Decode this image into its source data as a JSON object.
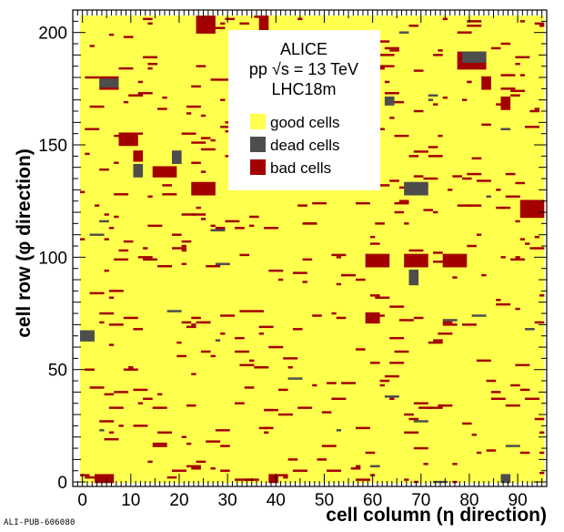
{
  "chart_data": {
    "type": "heatmap",
    "title": "",
    "xlabel": "cell column (η direction)",
    "ylabel": "cell row (φ direction)",
    "xlim": [
      -2,
      96
    ],
    "ylim": [
      -2,
      210
    ],
    "x_ticks": [
      0,
      10,
      20,
      30,
      40,
      50,
      60,
      70,
      80,
      90
    ],
    "y_ticks": [
      0,
      50,
      100,
      150,
      200
    ],
    "grid": false,
    "info_lines": [
      "ALICE",
      "pp √s = 13 TeV",
      "LHC18m"
    ],
    "legend_position": "top-center",
    "categories": [
      {
        "name": "good cells",
        "color": "#ffff4d"
      },
      {
        "name": "dead cells",
        "color": "#4d4d4d"
      },
      {
        "name": "bad cells",
        "color": "#a30000"
      }
    ],
    "cells_grid": {
      "columns": [
        0,
        95
      ],
      "rows": [
        0,
        207
      ],
      "default_status": "good cells"
    },
    "blocks": [
      {
        "status": "bad cells",
        "col": [
          3,
          6
        ],
        "row": [
          0,
          3
        ]
      },
      {
        "status": "dead cells",
        "col": [
          87,
          88
        ],
        "row": [
          0,
          3
        ]
      },
      {
        "status": "dead cells",
        "col": [
          0,
          2
        ],
        "row": [
          63,
          67
        ]
      },
      {
        "status": "bad cells",
        "col": [
          4,
          7
        ],
        "row": [
          175,
          180
        ]
      },
      {
        "status": "dead cells",
        "col": [
          4,
          7
        ],
        "row": [
          176,
          179
        ]
      },
      {
        "status": "bad cells",
        "col": [
          8,
          11
        ],
        "row": [
          150,
          155
        ]
      },
      {
        "status": "bad cells",
        "col": [
          15,
          19
        ],
        "row": [
          136,
          140
        ]
      },
      {
        "status": "bad cells",
        "col": [
          23,
          27
        ],
        "row": [
          128,
          133
        ]
      },
      {
        "status": "dead cells",
        "col": [
          19,
          20
        ],
        "row": [
          142,
          147
        ]
      },
      {
        "status": "bad cells",
        "col": [
          24,
          27
        ],
        "row": [
          200,
          207
        ]
      },
      {
        "status": "bad cells",
        "col": [
          37,
          38
        ],
        "row": [
          200,
          207
        ]
      },
      {
        "status": "bad cells",
        "col": [
          11,
          12
        ],
        "row": [
          143,
          147
        ]
      },
      {
        "status": "dead cells",
        "col": [
          11,
          12
        ],
        "row": [
          136,
          141
        ]
      },
      {
        "status": "dead cells",
        "col": [
          67,
          71
        ],
        "row": [
          128,
          133
        ]
      },
      {
        "status": "dead cells",
        "col": [
          63,
          64
        ],
        "row": [
          168,
          171
        ]
      },
      {
        "status": "bad cells",
        "col": [
          78,
          83
        ],
        "row": [
          184,
          191
        ]
      },
      {
        "status": "dead cells",
        "col": [
          79,
          83
        ],
        "row": [
          187,
          191
        ]
      },
      {
        "status": "bad cells",
        "col": [
          83,
          84
        ],
        "row": [
          175,
          180
        ]
      },
      {
        "status": "bad cells",
        "col": [
          87,
          88
        ],
        "row": [
          166,
          171
        ]
      },
      {
        "status": "bad cells",
        "col": [
          91,
          95
        ],
        "row": [
          118,
          125
        ]
      },
      {
        "status": "bad cells",
        "col": [
          59,
          63
        ],
        "row": [
          96,
          101
        ]
      },
      {
        "status": "bad cells",
        "col": [
          67,
          71
        ],
        "row": [
          96,
          101
        ]
      },
      {
        "status": "bad cells",
        "col": [
          75,
          79
        ],
        "row": [
          96,
          101
        ]
      },
      {
        "status": "dead cells",
        "col": [
          68,
          69
        ],
        "row": [
          88,
          94
        ]
      },
      {
        "status": "bad cells",
        "col": [
          59,
          61
        ],
        "row": [
          71,
          75
        ]
      },
      {
        "status": "bad cells",
        "col": [
          39,
          40
        ],
        "row": [
          0,
          3
        ]
      }
    ]
  },
  "publication_id": "ALI-PUB-606080"
}
